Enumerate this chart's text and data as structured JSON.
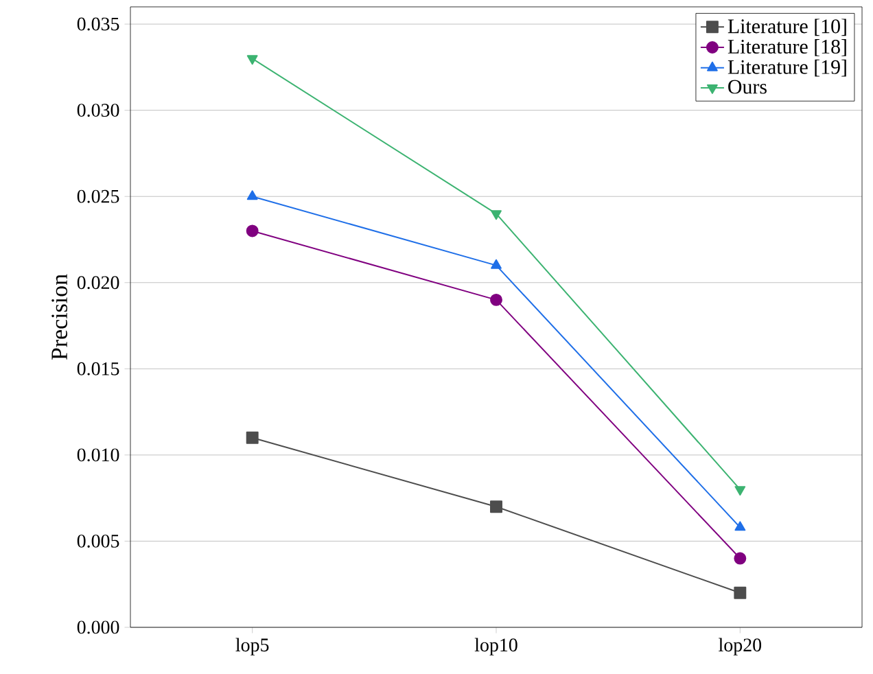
{
  "chart_data": {
    "type": "line",
    "ylabel": "Precision",
    "categories": [
      "lop5",
      "lop10",
      "lop20"
    ],
    "series": [
      {
        "name": "Literature [10]",
        "color": "#4d4d4d",
        "marker": "square",
        "values": [
          0.011,
          0.007,
          0.002
        ]
      },
      {
        "name": "Literature [18]",
        "color": "#800080",
        "marker": "circle",
        "values": [
          0.023,
          0.019,
          0.004
        ]
      },
      {
        "name": "Literature [19]",
        "color": "#1f6fe8",
        "marker": "triangle",
        "values": [
          0.025,
          0.021,
          0.0058
        ]
      },
      {
        "name": "Ours",
        "color": "#3cb371",
        "marker": "triangle-down",
        "values": [
          0.033,
          0.024,
          0.008
        ]
      }
    ],
    "ylim": [
      0,
      0.036
    ],
    "yticks": [
      {
        "value": 0,
        "label": "0.000"
      },
      {
        "value": 0.005,
        "label": "0.005"
      },
      {
        "value": 0.01,
        "label": "0.010"
      },
      {
        "value": 0.015,
        "label": "0.015"
      },
      {
        "value": 0.02,
        "label": "0.020"
      },
      {
        "value": 0.025,
        "label": "0.025"
      },
      {
        "value": 0.03,
        "label": "0.030"
      },
      {
        "value": 0.035,
        "label": "0.035"
      }
    ],
    "grid": "y",
    "legend": "top right",
    "line_style": "solid"
  }
}
